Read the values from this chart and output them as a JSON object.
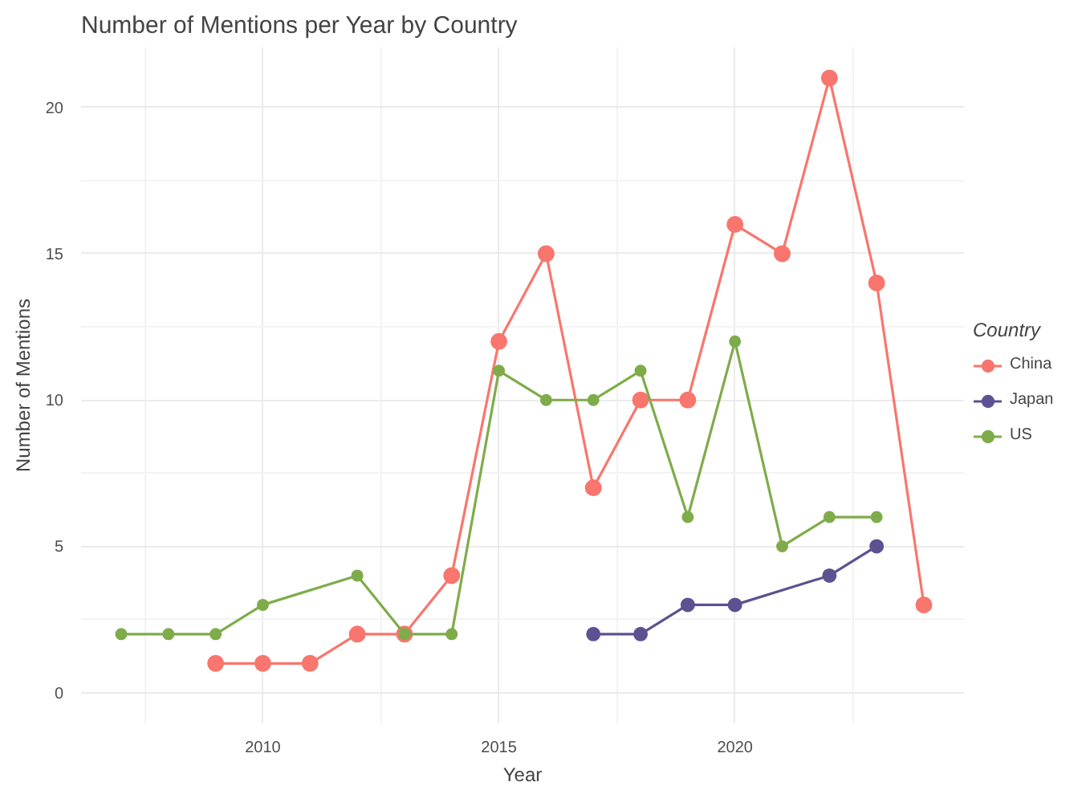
{
  "chart_data": {
    "type": "line",
    "title": "Number of Mentions per Year by Country",
    "xlabel": "Year",
    "ylabel": "Number of Mentions",
    "legend_title": "Country",
    "legend": "right",
    "grid": true,
    "marker": "circle",
    "line_style": "solid",
    "xlim": [
      2006.15,
      2024.85
    ],
    "xticks": [
      2010,
      2015,
      2020
    ],
    "ylim": [
      -1.05,
      22.05
    ],
    "yticks": [
      0,
      5,
      10,
      15,
      20
    ],
    "series": [
      {
        "name": "China",
        "color": "#f8766d",
        "x": [
          2009,
          2010,
          2011,
          2012,
          2013,
          2014,
          2015,
          2016,
          2017,
          2018,
          2019,
          2020,
          2021,
          2022,
          2023,
          2024
        ],
        "values": [
          1,
          1,
          1,
          2,
          2,
          4,
          12,
          15,
          7,
          10,
          10,
          16,
          15,
          21,
          14,
          3
        ]
      },
      {
        "name": "Japan",
        "color": "#5e5191",
        "x": [
          2017,
          2018,
          2019,
          2020,
          2022,
          2023
        ],
        "values": [
          2,
          2,
          3,
          3,
          4,
          5
        ]
      },
      {
        "name": "US",
        "color": "#7fac4a",
        "x": [
          2007,
          2008,
          2009,
          2010,
          2012,
          2013,
          2014,
          2015,
          2016,
          2017,
          2018,
          2019,
          2020,
          2021,
          2022,
          2023
        ],
        "values": [
          2,
          2,
          2,
          3,
          4,
          2,
          2,
          11,
          10,
          10,
          11,
          6,
          12,
          5,
          6,
          6
        ]
      }
    ]
  }
}
